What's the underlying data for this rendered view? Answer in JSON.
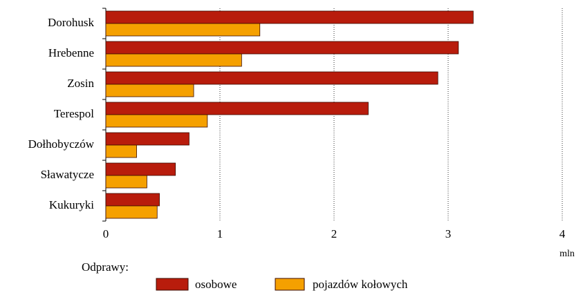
{
  "chart_data": {
    "type": "bar",
    "orientation": "horizontal",
    "categories": [
      "Dorohusk",
      "Hrebenne",
      "Zosin",
      "Terespol",
      "Dołhobyczów",
      "Sławatycze",
      "Kukuryki"
    ],
    "series": [
      {
        "name": "osobowe",
        "color": "#b81c0c",
        "values": [
          3.22,
          3.09,
          2.91,
          2.3,
          0.73,
          0.61,
          0.47
        ]
      },
      {
        "name": "pojazdów kołowych",
        "color": "#f5a000",
        "values": [
          1.35,
          1.19,
          0.77,
          0.89,
          0.27,
          0.36,
          0.45
        ]
      }
    ],
    "xlim": [
      0,
      4
    ],
    "xticks": [
      0,
      1,
      2,
      3,
      4
    ],
    "xlabel": "mln",
    "legend_title": "Odprawy:",
    "grid": true
  }
}
